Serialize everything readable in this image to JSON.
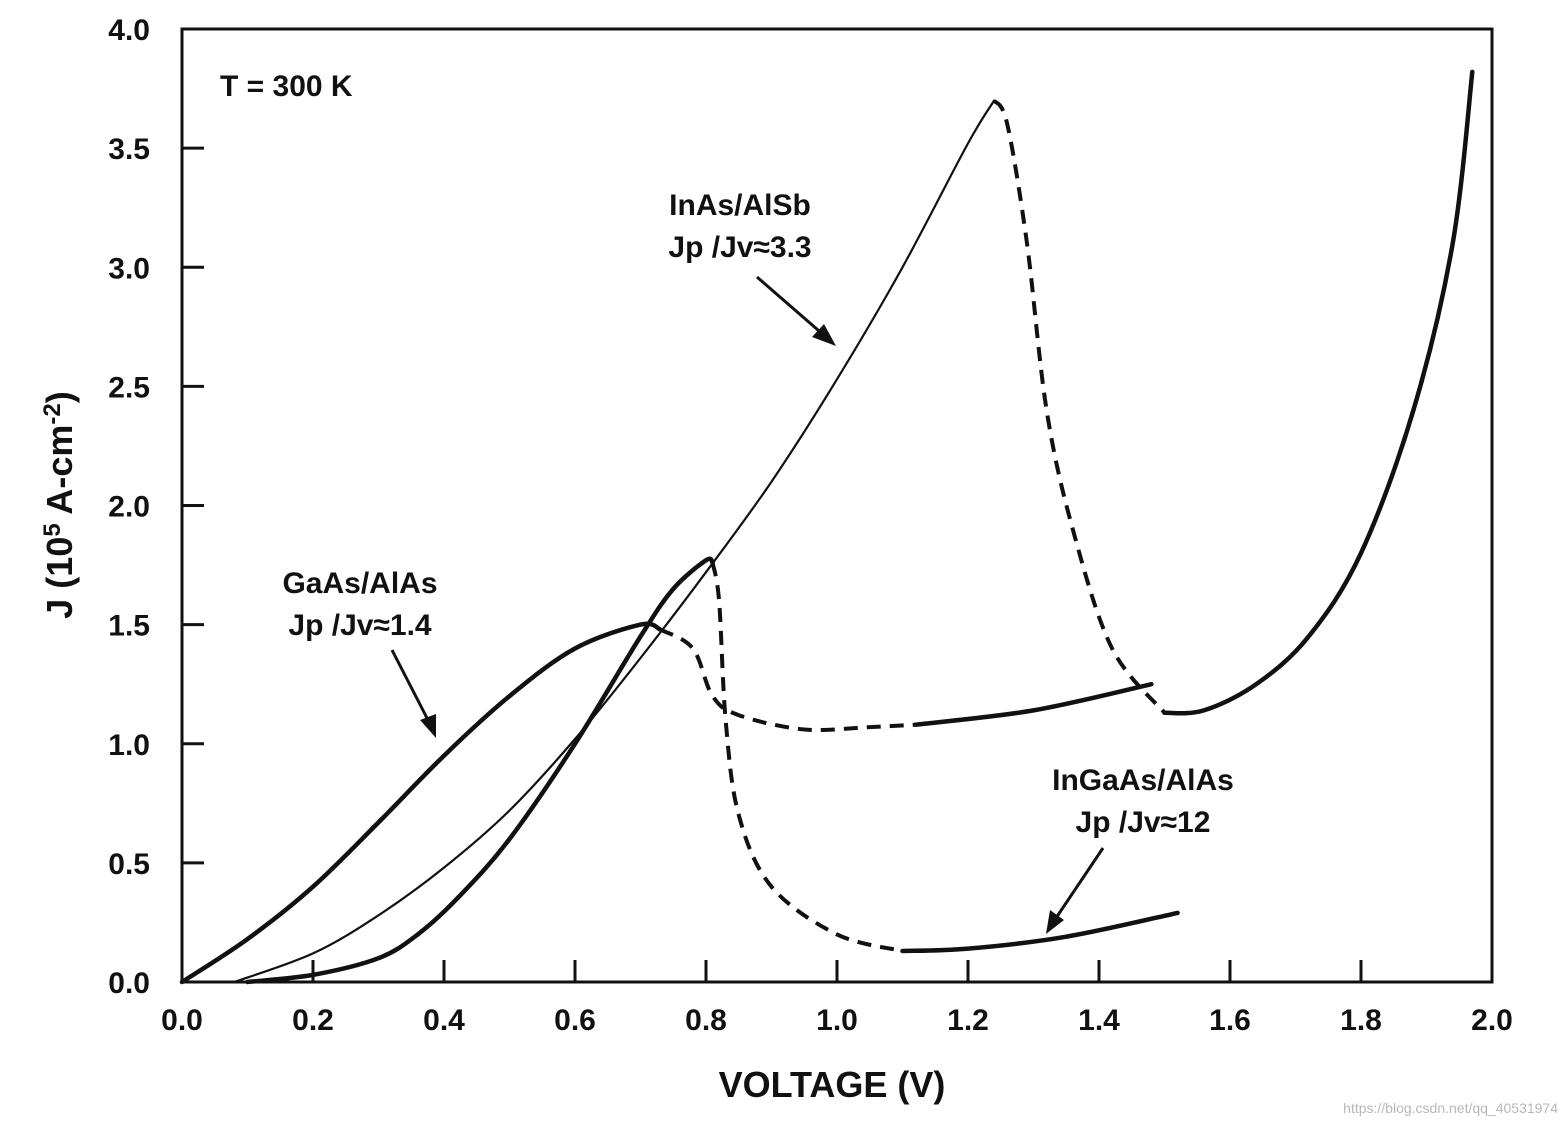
{
  "chart_data": {
    "type": "line",
    "title": "",
    "xlabel": "VOLTAGE (V)",
    "ylabel": "J (10^5 A-cm^-2)",
    "ylabel_parts": {
      "base": "J (10",
      "exp1": "5",
      "mid": " A-cm",
      "exp2": "-2",
      "end": ")"
    },
    "xlim": [
      0.0,
      2.0
    ],
    "ylim": [
      0.0,
      4.0
    ],
    "xticks": [
      "0.0",
      "0.2",
      "0.4",
      "0.6",
      "0.8",
      "1.0",
      "1.2",
      "1.4",
      "1.6",
      "1.8",
      "2.0"
    ],
    "yticks": [
      "0.0",
      "0.5",
      "1.0",
      "1.5",
      "2.0",
      "2.5",
      "3.0",
      "3.5",
      "4.0"
    ],
    "grid": false,
    "temperature_label": "T = 300 K",
    "series": [
      {
        "name": "GaAs/AlAs",
        "peak_valley_ratio": "Jp /Jv≈1.4",
        "solid": [
          [
            0.0,
            0.0
          ],
          [
            0.1,
            0.18
          ],
          [
            0.2,
            0.4
          ],
          [
            0.3,
            0.67
          ],
          [
            0.4,
            0.95
          ],
          [
            0.5,
            1.2
          ],
          [
            0.6,
            1.4
          ],
          [
            0.7,
            1.5
          ],
          [
            0.73,
            1.48
          ]
        ],
        "dashed": [
          [
            0.73,
            1.48
          ],
          [
            0.78,
            1.4
          ],
          [
            0.81,
            1.2
          ],
          [
            0.85,
            1.12
          ],
          [
            0.95,
            1.06
          ],
          [
            1.05,
            1.07
          ],
          [
            1.12,
            1.08
          ]
        ],
        "solid_tail": [
          [
            1.12,
            1.08
          ],
          [
            1.3,
            1.14
          ],
          [
            1.48,
            1.25
          ]
        ]
      },
      {
        "name": "InAs/AlSb",
        "peak_valley_ratio": "Jp /Jv≈3.3",
        "solid": [
          [
            0.08,
            0.0
          ],
          [
            0.2,
            0.12
          ],
          [
            0.3,
            0.28
          ],
          [
            0.4,
            0.48
          ],
          [
            0.5,
            0.72
          ],
          [
            0.6,
            1.02
          ],
          [
            0.7,
            1.36
          ],
          [
            0.8,
            1.72
          ],
          [
            0.9,
            2.1
          ],
          [
            1.0,
            2.53
          ],
          [
            1.1,
            3.0
          ],
          [
            1.2,
            3.52
          ],
          [
            1.24,
            3.7
          ]
        ],
        "dashed": [
          [
            1.24,
            3.7
          ],
          [
            1.26,
            3.6
          ],
          [
            1.29,
            3.1
          ],
          [
            1.32,
            2.4
          ],
          [
            1.36,
            1.9
          ],
          [
            1.42,
            1.4
          ],
          [
            1.5,
            1.13
          ]
        ],
        "solid_tail": [
          [
            1.5,
            1.13
          ],
          [
            1.56,
            1.14
          ],
          [
            1.64,
            1.25
          ],
          [
            1.72,
            1.45
          ],
          [
            1.8,
            1.8
          ],
          [
            1.88,
            2.4
          ],
          [
            1.94,
            3.1
          ],
          [
            1.97,
            3.82
          ]
        ]
      },
      {
        "name": "InGaAs/AlAs",
        "peak_valley_ratio": "Jp /Jv≈12",
        "solid": [
          [
            0.1,
            0.0
          ],
          [
            0.2,
            0.03
          ],
          [
            0.3,
            0.1
          ],
          [
            0.36,
            0.2
          ],
          [
            0.42,
            0.35
          ],
          [
            0.5,
            0.6
          ],
          [
            0.6,
            1.0
          ],
          [
            0.7,
            1.45
          ],
          [
            0.75,
            1.65
          ],
          [
            0.8,
            1.77
          ],
          [
            0.81,
            1.76
          ]
        ],
        "dashed": [
          [
            0.81,
            1.76
          ],
          [
            0.82,
            1.6
          ],
          [
            0.83,
            1.1
          ],
          [
            0.85,
            0.7
          ],
          [
            0.9,
            0.4
          ],
          [
            1.0,
            0.2
          ],
          [
            1.1,
            0.13
          ]
        ],
        "solid_tail": [
          [
            1.1,
            0.13
          ],
          [
            1.2,
            0.14
          ],
          [
            1.35,
            0.19
          ],
          [
            1.52,
            0.29
          ]
        ]
      }
    ]
  },
  "watermark": "https://blog.csdn.net/qq_40531974"
}
